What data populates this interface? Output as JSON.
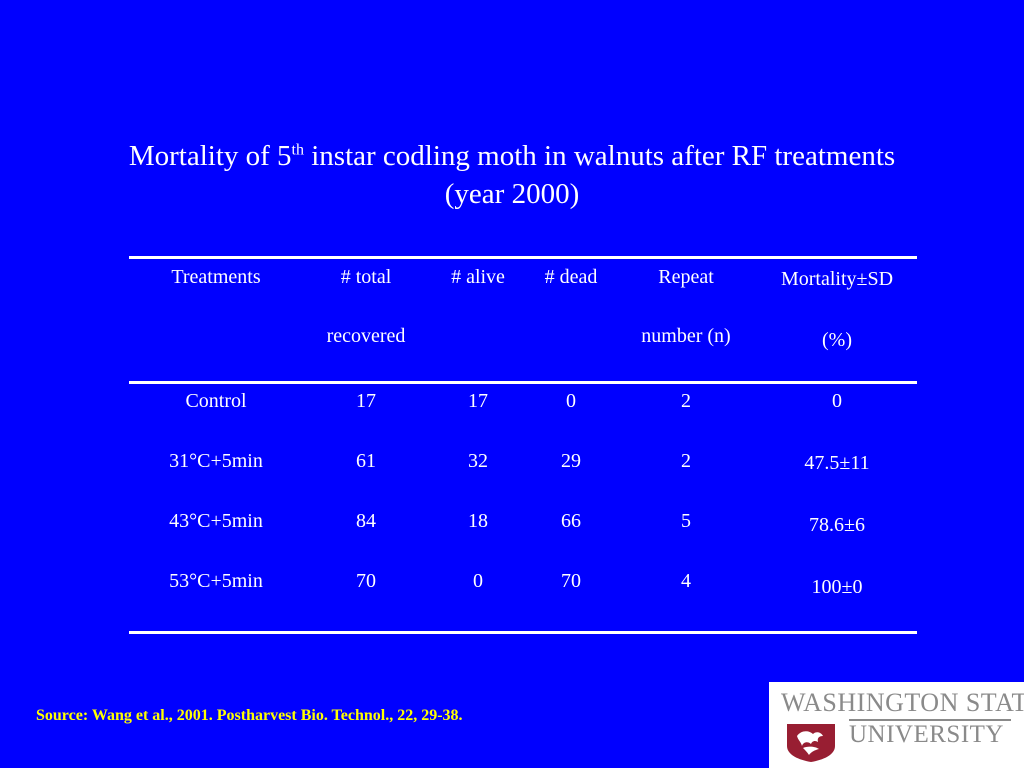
{
  "title": {
    "line1_prefix": "Mortality of 5",
    "line1_sup": "th",
    "line1_suffix": " instar codling moth in walnuts after RF treatments",
    "line2": "(year 2000)"
  },
  "table": {
    "headers": [
      {
        "line1": "Treatments",
        "line2": ""
      },
      {
        "line1": "# total",
        "line2": "recovered"
      },
      {
        "line1": "# alive",
        "line2": ""
      },
      {
        "line1": "# dead",
        "line2": ""
      },
      {
        "line1": "Repeat",
        "line2": "number (n)"
      },
      {
        "line1": "Mortality±SD",
        "line2": "(%)"
      }
    ],
    "rows": [
      [
        "Control",
        "17",
        "17",
        "0",
        "2",
        "0"
      ],
      [
        "31°C+5min",
        "61",
        "32",
        "29",
        "2",
        "47.5±11"
      ],
      [
        "43°C+5min",
        "84",
        "18",
        "66",
        "5",
        "78.6±6"
      ],
      [
        "53°C+5min",
        "70",
        "0",
        "70",
        "4",
        "100±0"
      ]
    ]
  },
  "source": "Source: Wang et al., 2001. Postharvest Bio. Technol., 22, 29-38.",
  "logo": {
    "line1": "WASHINGTON STATE",
    "line2": "UNIVERSITY"
  },
  "colors": {
    "background": "#0000ff",
    "text": "#ffffff",
    "source": "#ffff00",
    "logo_gray": "#8a8a8a",
    "logo_crimson": "#981e32"
  }
}
